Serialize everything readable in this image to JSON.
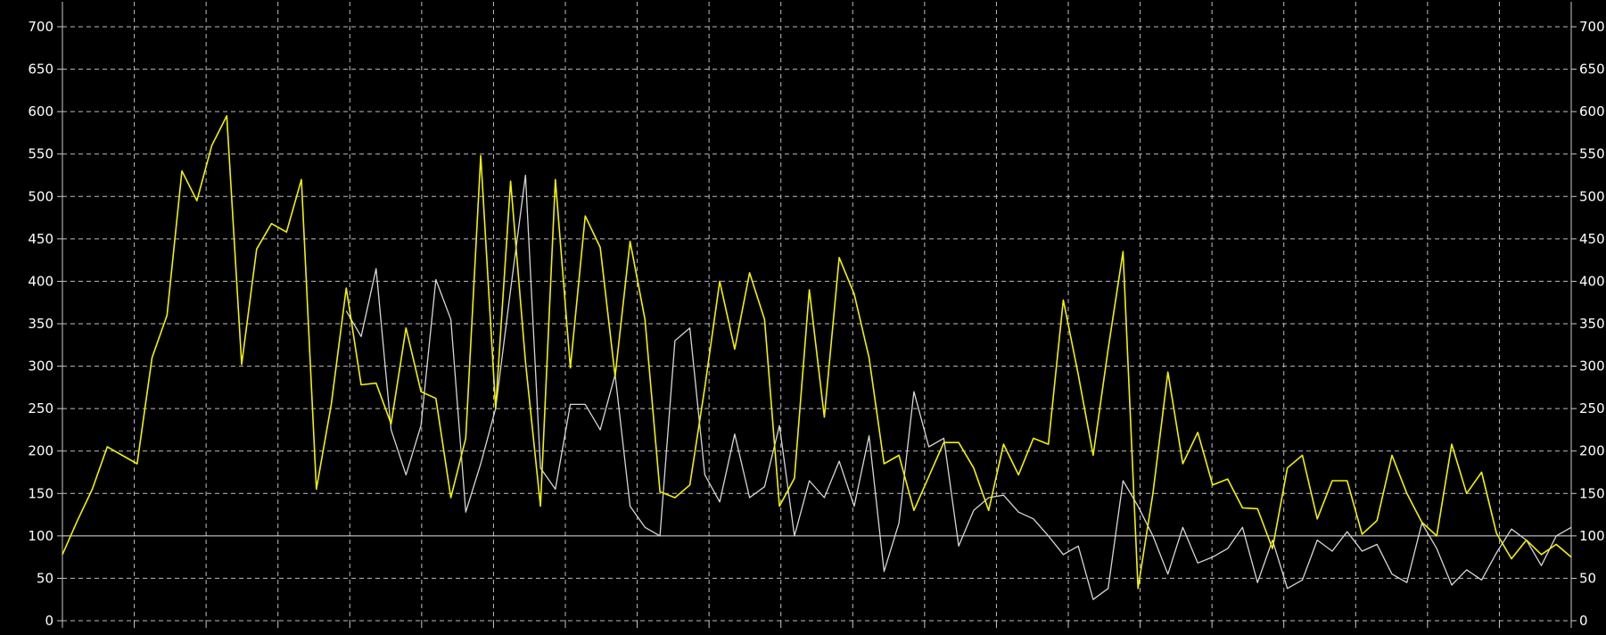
{
  "chart_data": {
    "type": "line",
    "title": "",
    "xlabel": "",
    "ylabel": "",
    "ylim": [
      0,
      700
    ],
    "y_ticks": [
      "0",
      "50",
      "100",
      "150",
      "200",
      "250",
      "300",
      "350",
      "400",
      "450",
      "500",
      "550",
      "600",
      "650",
      "700"
    ],
    "grid": true,
    "background": "#000000",
    "axis_color": "#c8c8c8",
    "grid_color": "#bdbdbd",
    "reference_line": 100,
    "series": [
      {
        "color": "#f2f200",
        "values": [
          78,
          118,
          155,
          205,
          195,
          185,
          310,
          360,
          530,
          495,
          560,
          595,
          302,
          438,
          468,
          458,
          520,
          155,
          255,
          392,
          278,
          280,
          232,
          345,
          270,
          262,
          145,
          215,
          548,
          250,
          518,
          305,
          135,
          520,
          298,
          477,
          440,
          288,
          447,
          355,
          152,
          145,
          160,
          275,
          400,
          320,
          410,
          355,
          135,
          168,
          390,
          240,
          428,
          385,
          310,
          185,
          195,
          130,
          170,
          210,
          210,
          180,
          130,
          208,
          172,
          215,
          208,
          378,
          290,
          195,
          320,
          435,
          38,
          150,
          293,
          185,
          222,
          160,
          167,
          133,
          132,
          85,
          180,
          195,
          120,
          165,
          165,
          102,
          118,
          195,
          150,
          116,
          100,
          208,
          150,
          175,
          103,
          73,
          95,
          78,
          90,
          75
        ]
      },
      {
        "color": "#d6d6d6",
        "values": [
          null,
          null,
          null,
          null,
          null,
          null,
          null,
          null,
          null,
          null,
          null,
          null,
          null,
          null,
          null,
          null,
          null,
          null,
          null,
          365,
          335,
          415,
          225,
          172,
          230,
          402,
          355,
          128,
          185,
          250,
          390,
          525,
          180,
          155,
          255,
          255,
          225,
          290,
          135,
          110,
          100,
          330,
          345,
          172,
          140,
          220,
          145,
          158,
          230,
          100,
          165,
          145,
          188,
          135,
          218,
          58,
          115,
          270,
          205,
          215,
          88,
          130,
          145,
          148,
          128,
          120,
          100,
          78,
          88,
          25,
          38,
          165,
          135,
          100,
          55,
          110,
          68,
          75,
          85,
          110,
          45,
          95,
          38,
          48,
          95,
          82,
          105,
          82,
          90,
          55,
          45,
          115,
          85,
          42,
          60,
          48,
          80,
          108,
          95,
          65,
          100,
          110
        ]
      }
    ]
  }
}
